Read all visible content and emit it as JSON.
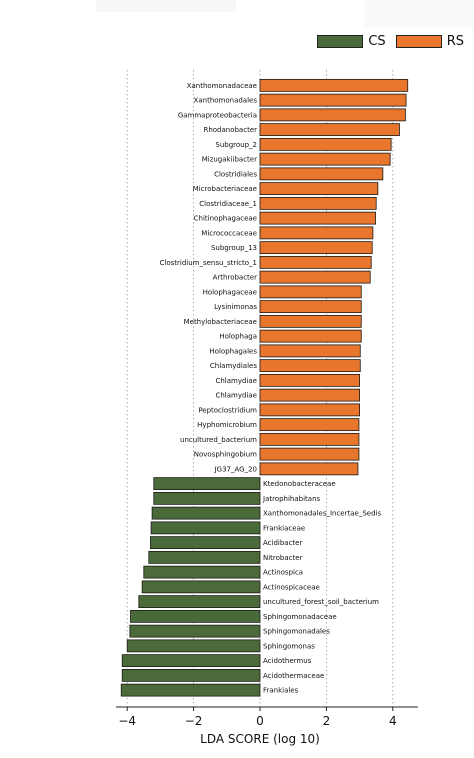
{
  "chart_data": {
    "type": "bar",
    "orientation": "horizontal",
    "xlabel": "LDA SCORE (log 10)",
    "xlim": [
      -4.2,
      4.6
    ],
    "xticks": [
      -4,
      -2,
      0,
      2,
      4
    ],
    "xtick_labels": [
      "−4",
      "−2",
      "0",
      "2",
      "4"
    ],
    "grid": "vertical dotted lines at ticks",
    "legend_position": "top-right",
    "series": [
      {
        "name": "CS",
        "color": "#4b6a3a",
        "categories": [
          "Ktedonobacteraceae",
          "Jatrophihabitans",
          "Xanthomonadales_Incertae_Sedis",
          "Frankiaceae",
          "Acidibacter",
          "Nitrobacter",
          "Actinospica",
          "Actinospicaceae",
          "uncultured_forest_soil_bacterium",
          "Sphingomonadaceae",
          "Sphingomonadales",
          "Sphingomonas",
          "Acidothermus",
          "Acidothermaceae",
          "Frankiales"
        ],
        "values": [
          -3.2,
          -3.2,
          -3.25,
          -3.28,
          -3.3,
          -3.35,
          -3.5,
          -3.55,
          -3.65,
          -3.9,
          -3.92,
          -4.0,
          -4.15,
          -4.15,
          -4.18
        ]
      },
      {
        "name": "RS",
        "color": "#e8762d",
        "categories": [
          "Xanthomonadaceae",
          "Xanthomonadales",
          "Gammaproteobacteria",
          "Rhodanobacter",
          "Subgroup_2",
          "Mizugakiibacter",
          "Clostridiales",
          "Microbacteriaceae",
          "Clostridiaceae_1",
          "Chitinophagaceae",
          "Micrococcaceae",
          "Subgroup_13",
          "Clostridium_sensu_stricto_1",
          "Arthrobacter",
          "Holophagaceae",
          "Lysinimonas",
          "Methylobacteriaceae",
          "Holophaga",
          "Holophagales",
          "Chlamydiales",
          "Chlamydiae",
          "Chlamydiae",
          "Peptoclostridium",
          "Hyphomicrobium",
          "uncultured_bacterium",
          "Novosphingobium",
          "JG37_AG_20"
        ],
        "values": [
          4.45,
          4.4,
          4.38,
          4.2,
          3.95,
          3.92,
          3.7,
          3.55,
          3.5,
          3.48,
          3.4,
          3.38,
          3.35,
          3.32,
          3.05,
          3.05,
          3.05,
          3.05,
          3.02,
          3.02,
          3.0,
          3.0,
          3.0,
          2.98,
          2.98,
          2.98,
          2.95
        ]
      }
    ]
  }
}
